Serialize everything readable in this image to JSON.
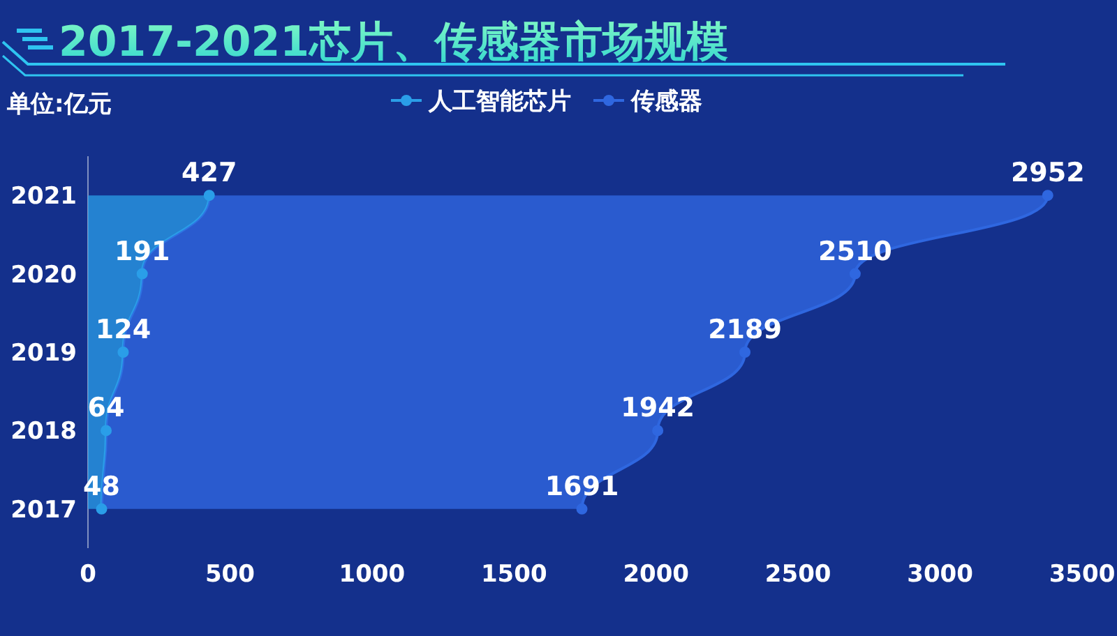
{
  "chart_data": {
    "type": "area",
    "title": "2017-2021芯片、传感器市场规模",
    "orientation": "horizontal",
    "stacked": true,
    "categories": [
      "2021",
      "2020",
      "2019",
      "2018",
      "2017"
    ],
    "series": [
      {
        "name": "人工智能芯片",
        "color": "#2a9ee8",
        "values": [
          427,
          191,
          124,
          64,
          48
        ]
      },
      {
        "name": "传感器",
        "color": "#2f67e0",
        "values": [
          2952,
          2510,
          2189,
          1942,
          1691
        ]
      }
    ],
    "xlim": [
      0,
      3500
    ],
    "xticks": [
      0,
      500,
      1000,
      1500,
      2000,
      2500,
      3000,
      3500
    ],
    "annotations": [
      "单位:亿元"
    ],
    "legend": "top",
    "marker": "circle",
    "data_labels": true
  }
}
